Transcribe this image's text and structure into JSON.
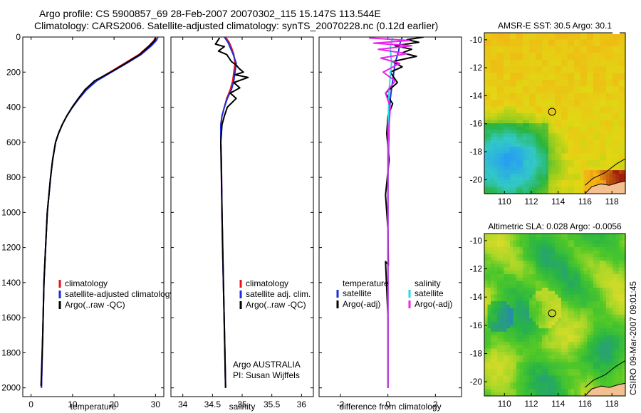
{
  "title": {
    "line1": "Argo profile: CS 5900857_69 28-Feb-2007 20070302_115 15.147S 113.544E",
    "line2": "Climatology: CARS2006. Satellite-adjusted climatology: synTS_20070228.nc (0.12d earlier)"
  },
  "credit": "CSIRO 09-Mar-2007 09:01:45",
  "colors": {
    "clim": "#ee1111",
    "sat": "#1a2ee0",
    "argo": "#000000",
    "cyan": "#22dddd",
    "magenta": "#ee22ee"
  },
  "chart_data": [
    {
      "id": "temperature",
      "type": "line",
      "xlabel": "temperature",
      "xlim": [
        -2,
        32
      ],
      "xticks": [
        0,
        10,
        20,
        30
      ],
      "ylim": [
        2050,
        0
      ],
      "yticks": [
        0,
        200,
        400,
        600,
        800,
        1000,
        1200,
        1400,
        1600,
        1800,
        2000
      ],
      "legend": [
        "climatology",
        "satellite-adjusted climatology",
        "Argo(..raw -QC)"
      ],
      "series": [
        {
          "name": "climatology",
          "color": "clim",
          "x": [
            30.0,
            29.6,
            28.4,
            26.0,
            22.5,
            19.0,
            15.5,
            13.2,
            11.5,
            10.0,
            8.6,
            7.5,
            6.6,
            5.9,
            5.2,
            4.7,
            4.3,
            3.9,
            3.5,
            3.1,
            2.8,
            2.5
          ],
          "y": [
            0,
            20,
            50,
            100,
            150,
            200,
            250,
            300,
            350,
            400,
            450,
            500,
            550,
            600,
            700,
            800,
            900,
            1000,
            1200,
            1400,
            1700,
            2000
          ]
        },
        {
          "name": "satellite-adjusted climatology",
          "color": "sat",
          "x": [
            30.6,
            30.2,
            29.0,
            26.5,
            23.0,
            19.4,
            15.8,
            13.4,
            11.6,
            10.0,
            8.6,
            7.5,
            6.6,
            5.9,
            5.2,
            4.7,
            4.3,
            3.9,
            3.5,
            3.1,
            2.8,
            2.5
          ],
          "y": [
            0,
            20,
            50,
            100,
            150,
            200,
            250,
            300,
            350,
            400,
            450,
            500,
            550,
            600,
            700,
            800,
            900,
            1000,
            1200,
            1400,
            1700,
            2000
          ]
        },
        {
          "name": "Argo(..raw -QC)",
          "color": "argo",
          "x": [
            30.1,
            29.8,
            28.6,
            26.2,
            22.8,
            19.2,
            15.3,
            13.0,
            11.4,
            9.9,
            8.6,
            7.5,
            6.6,
            5.9,
            5.2,
            4.7,
            4.3,
            3.9,
            3.5,
            3.1,
            2.8,
            2.4
          ],
          "y": [
            5,
            20,
            50,
            100,
            150,
            200,
            250,
            300,
            350,
            400,
            450,
            500,
            550,
            600,
            700,
            800,
            900,
            1000,
            1200,
            1400,
            1700,
            1990
          ]
        }
      ]
    },
    {
      "id": "salinity",
      "type": "line",
      "xlabel": "salinity",
      "xlim": [
        33.8,
        36.2
      ],
      "xticks": [
        34,
        34.5,
        35,
        35.5,
        36
      ],
      "ylim": [
        2050,
        0
      ],
      "legend": [
        "climatology",
        "satellite adj. clim.",
        "Argo(..raw -QC)"
      ],
      "annotation": [
        "Argo AUSTRALIA",
        "PI: Susan Wijffels"
      ],
      "series": [
        {
          "name": "climatology",
          "color": "clim",
          "x": [
            34.72,
            34.78,
            34.82,
            34.86,
            34.88,
            34.86,
            34.84,
            34.8,
            34.74,
            34.7,
            34.66,
            34.64,
            34.64,
            34.65,
            34.66,
            34.67,
            34.69,
            34.71,
            34.72
          ],
          "y": [
            0,
            30,
            60,
            100,
            150,
            200,
            250,
            300,
            350,
            400,
            450,
            500,
            600,
            700,
            1000,
            1200,
            1500,
            1800,
            2000
          ]
        },
        {
          "name": "satellite adj. clim.",
          "color": "sat",
          "x": [
            34.7,
            34.76,
            34.8,
            34.85,
            34.9,
            34.88,
            34.86,
            34.82,
            34.75,
            34.7,
            34.66,
            34.64,
            34.64,
            34.65,
            34.66,
            34.67,
            34.69,
            34.71,
            34.72
          ],
          "y": [
            0,
            30,
            60,
            100,
            150,
            200,
            250,
            300,
            350,
            400,
            450,
            500,
            600,
            700,
            1000,
            1200,
            1500,
            1800,
            2000
          ]
        },
        {
          "name": "Argo(..raw -QC)",
          "color": "argo",
          "x": [
            34.62,
            34.55,
            34.7,
            34.6,
            34.74,
            34.82,
            34.9,
            34.95,
            35.02,
            34.88,
            35.1,
            34.86,
            34.96,
            34.8,
            34.9,
            34.75,
            34.7,
            34.66,
            34.64,
            34.66,
            34.69,
            34.72
          ],
          "y": [
            5,
            40,
            55,
            80,
            100,
            140,
            160,
            180,
            200,
            215,
            230,
            260,
            290,
            320,
            350,
            400,
            450,
            500,
            600,
            1000,
            1500,
            2000
          ]
        }
      ]
    },
    {
      "id": "difference",
      "type": "line",
      "xlabel": "difference from climatology",
      "xlim": [
        -2.9,
        3.1
      ],
      "xticks": [
        -2,
        0,
        2
      ],
      "ylim": [
        2050,
        0
      ],
      "legend": {
        "temperature_header": "temperature",
        "salinity_header": "salinity",
        "temperature": [
          "satellite",
          "Argo(-adj)"
        ],
        "salinity": [
          "satellite",
          "Argo(-adj)"
        ]
      },
      "series": [
        {
          "name": "temperature satellite",
          "color": "sat",
          "x": [
            0.6,
            0.5,
            0.45,
            0.3,
            0.2,
            0.1,
            0.05,
            0.0,
            0.0
          ],
          "y": [
            0,
            40,
            80,
            150,
            250,
            350,
            500,
            800,
            2000
          ]
        },
        {
          "name": "temperature Argo(-adj)",
          "color": "argo",
          "x": [
            1.5,
            0.8,
            1.3,
            0.3,
            1.0,
            0.6,
            1.2,
            0.2,
            0.6,
            0.1,
            0.4,
            -0.1,
            0.2,
            0.0,
            -0.05,
            0.05,
            -0.1,
            0.0,
            0.02,
            -0.1,
            0.0,
            0.0
          ],
          "y": [
            0,
            15,
            30,
            50,
            70,
            90,
            110,
            140,
            170,
            200,
            260,
            320,
            380,
            450,
            550,
            700,
            900,
            1100,
            1300,
            1280,
            1600,
            2000
          ]
        },
        {
          "name": "salinity satellite",
          "color": "cyan",
          "x": [
            0.2,
            0.1,
            0.15,
            0.05,
            0.02,
            0.0,
            0.0
          ],
          "y": [
            0,
            60,
            150,
            300,
            450,
            700,
            2000
          ]
        },
        {
          "name": "salinity Argo(-adj)",
          "color": "magenta",
          "x": [
            -0.8,
            0.9,
            -0.6,
            1.0,
            -0.4,
            0.8,
            -0.3,
            0.5,
            -0.2,
            0.3,
            -0.1,
            0.1,
            0.0,
            0.0
          ],
          "y": [
            5,
            20,
            35,
            50,
            70,
            95,
            120,
            150,
            200,
            250,
            320,
            400,
            600,
            2000
          ]
        }
      ]
    },
    {
      "id": "sst_map",
      "type": "heatmap",
      "title": "AMSR-E SST: 30.5 Argo: 30.1",
      "xlim": [
        108.5,
        119
      ],
      "ylim": [
        -21,
        -9.5
      ],
      "xticks": [
        110,
        112,
        114,
        116,
        118
      ],
      "yticks": [
        -10,
        -12,
        -14,
        -16,
        -18,
        -20
      ],
      "marker": {
        "lon": 113.544,
        "lat": -15.147
      }
    },
    {
      "id": "sla_map",
      "type": "heatmap",
      "title": "Altimetric SLA: 0.028 Argo: -0.0056",
      "xlim": [
        108.5,
        119
      ],
      "ylim": [
        -21,
        -9.5
      ],
      "xticks": [
        110,
        112,
        114,
        116,
        118
      ],
      "yticks": [
        -10,
        -12,
        -14,
        -16,
        -18,
        -20
      ],
      "marker": {
        "lon": 113.544,
        "lat": -15.147
      }
    }
  ]
}
